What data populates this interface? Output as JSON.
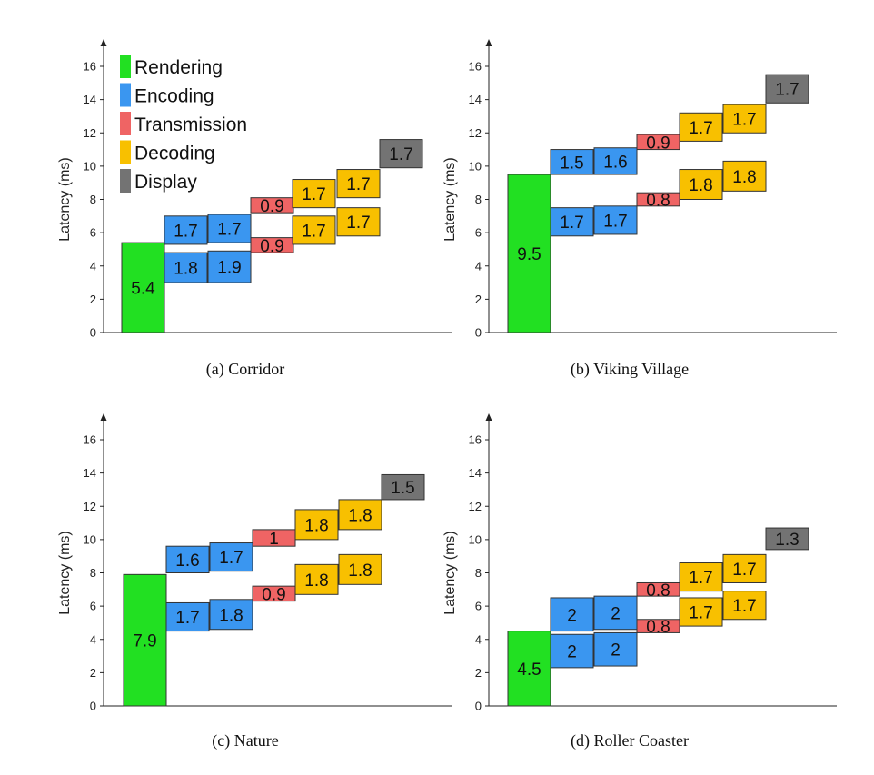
{
  "colors": {
    "Rendering": "#22e022",
    "Encoding": "#3a96f0",
    "Transmission": "#ef6464",
    "Decoding": "#f8c000",
    "Display": "#737373"
  },
  "legend": [
    "Rendering",
    "Encoding",
    "Transmission",
    "Decoding",
    "Display"
  ],
  "chart_data": [
    {
      "type": "bar",
      "caption": "(a)  Corridor",
      "ylabel": "Latency (ms)",
      "ylim": [
        0,
        16
      ],
      "yticks": [
        "0",
        "2",
        "4",
        "6",
        "8",
        "10",
        "12",
        "14",
        "16"
      ],
      "bars": [
        {
          "stage": "Rendering",
          "slot": 0,
          "start": 0,
          "value": 5.4,
          "label": "5.4"
        },
        {
          "stage": "Encoding",
          "slot": 1,
          "start": 3.0,
          "value": 1.8,
          "label": "1.8"
        },
        {
          "stage": "Encoding",
          "slot": 2,
          "start": 3.0,
          "value": 1.9,
          "label": "1.9"
        },
        {
          "stage": "Encoding",
          "slot": 1,
          "start": 5.3,
          "value": 1.7,
          "label": "1.7"
        },
        {
          "stage": "Encoding",
          "slot": 2,
          "start": 5.4,
          "value": 1.7,
          "label": "1.7"
        },
        {
          "stage": "Transmission",
          "slot": 3,
          "start": 4.8,
          "value": 0.9,
          "label": "0.9"
        },
        {
          "stage": "Transmission",
          "slot": 3,
          "start": 7.2,
          "value": 0.9,
          "label": "0.9"
        },
        {
          "stage": "Decoding",
          "slot": 4,
          "start": 5.3,
          "value": 1.7,
          "label": "1.7"
        },
        {
          "stage": "Decoding",
          "slot": 5,
          "start": 5.8,
          "value": 1.7,
          "label": "1.7"
        },
        {
          "stage": "Decoding",
          "slot": 4,
          "start": 7.5,
          "value": 1.7,
          "label": "1.7"
        },
        {
          "stage": "Decoding",
          "slot": 5,
          "start": 8.1,
          "value": 1.7,
          "label": "1.7"
        },
        {
          "stage": "Display",
          "slot": 6,
          "start": 9.9,
          "value": 1.7,
          "label": "1.7"
        }
      ]
    },
    {
      "type": "bar",
      "caption": "(b)  Viking Village",
      "ylabel": "Latency (ms)",
      "ylim": [
        0,
        16
      ],
      "yticks": [
        "0",
        "2",
        "4",
        "6",
        "8",
        "10",
        "12",
        "14",
        "16"
      ],
      "bars": [
        {
          "stage": "Rendering",
          "slot": 0,
          "start": 0,
          "value": 9.5,
          "label": "9.5"
        },
        {
          "stage": "Encoding",
          "slot": 1,
          "start": 5.8,
          "value": 1.7,
          "label": "1.7"
        },
        {
          "stage": "Encoding",
          "slot": 2,
          "start": 5.9,
          "value": 1.7,
          "label": "1.7"
        },
        {
          "stage": "Encoding",
          "slot": 1,
          "start": 9.5,
          "value": 1.5,
          "label": "1.5"
        },
        {
          "stage": "Encoding",
          "slot": 2,
          "start": 9.5,
          "value": 1.6,
          "label": "1.6"
        },
        {
          "stage": "Transmission",
          "slot": 3,
          "start": 7.6,
          "value": 0.8,
          "label": "0.8"
        },
        {
          "stage": "Transmission",
          "slot": 3,
          "start": 11.0,
          "value": 0.9,
          "label": "0.9"
        },
        {
          "stage": "Decoding",
          "slot": 4,
          "start": 8.0,
          "value": 1.8,
          "label": "1.8"
        },
        {
          "stage": "Decoding",
          "slot": 5,
          "start": 8.5,
          "value": 1.8,
          "label": "1.8"
        },
        {
          "stage": "Decoding",
          "slot": 4,
          "start": 11.5,
          "value": 1.7,
          "label": "1.7"
        },
        {
          "stage": "Decoding",
          "slot": 5,
          "start": 12.0,
          "value": 1.7,
          "label": "1.7"
        },
        {
          "stage": "Display",
          "slot": 6,
          "start": 13.8,
          "value": 1.7,
          "label": "1.7"
        }
      ]
    },
    {
      "type": "bar",
      "caption": "(c)  Nature",
      "ylabel": "Latency (ms)",
      "ylim": [
        0,
        16
      ],
      "yticks": [
        "0",
        "2",
        "4",
        "6",
        "8",
        "10",
        "12",
        "14",
        "16"
      ],
      "bars": [
        {
          "stage": "Rendering",
          "slot": 0,
          "start": 0,
          "value": 7.9,
          "label": "7.9"
        },
        {
          "stage": "Encoding",
          "slot": 1,
          "start": 4.5,
          "value": 1.7,
          "label": "1.7"
        },
        {
          "stage": "Encoding",
          "slot": 2,
          "start": 4.6,
          "value": 1.8,
          "label": "1.8"
        },
        {
          "stage": "Encoding",
          "slot": 1,
          "start": 8.0,
          "value": 1.6,
          "label": "1.6"
        },
        {
          "stage": "Encoding",
          "slot": 2,
          "start": 8.1,
          "value": 1.7,
          "label": "1.7"
        },
        {
          "stage": "Transmission",
          "slot": 3,
          "start": 6.3,
          "value": 0.9,
          "label": "0.9"
        },
        {
          "stage": "Transmission",
          "slot": 3,
          "start": 9.6,
          "value": 1.0,
          "label": "1"
        },
        {
          "stage": "Decoding",
          "slot": 4,
          "start": 6.7,
          "value": 1.8,
          "label": "1.8"
        },
        {
          "stage": "Decoding",
          "slot": 5,
          "start": 7.3,
          "value": 1.8,
          "label": "1.8"
        },
        {
          "stage": "Decoding",
          "slot": 4,
          "start": 10.0,
          "value": 1.8,
          "label": "1.8"
        },
        {
          "stage": "Decoding",
          "slot": 5,
          "start": 10.6,
          "value": 1.8,
          "label": "1.8"
        },
        {
          "stage": "Display",
          "slot": 6,
          "start": 12.4,
          "value": 1.5,
          "label": "1.5"
        }
      ]
    },
    {
      "type": "bar",
      "caption": "(d)  Roller Coaster",
      "ylabel": "Latency (ms)",
      "ylim": [
        0,
        16
      ],
      "yticks": [
        "0",
        "2",
        "4",
        "6",
        "8",
        "10",
        "12",
        "14",
        "16"
      ],
      "bars": [
        {
          "stage": "Rendering",
          "slot": 0,
          "start": 0,
          "value": 4.5,
          "label": "4.5"
        },
        {
          "stage": "Encoding",
          "slot": 1,
          "start": 2.3,
          "value": 2.0,
          "label": "2"
        },
        {
          "stage": "Encoding",
          "slot": 2,
          "start": 2.4,
          "value": 2.0,
          "label": "2"
        },
        {
          "stage": "Encoding",
          "slot": 1,
          "start": 4.5,
          "value": 2.0,
          "label": "2"
        },
        {
          "stage": "Encoding",
          "slot": 2,
          "start": 4.6,
          "value": 2.0,
          "label": "2"
        },
        {
          "stage": "Transmission",
          "slot": 3,
          "start": 4.4,
          "value": 0.8,
          "label": "0.8"
        },
        {
          "stage": "Transmission",
          "slot": 3,
          "start": 6.6,
          "value": 0.8,
          "label": "0.8"
        },
        {
          "stage": "Decoding",
          "slot": 4,
          "start": 4.8,
          "value": 1.7,
          "label": "1.7"
        },
        {
          "stage": "Decoding",
          "slot": 5,
          "start": 5.2,
          "value": 1.7,
          "label": "1.7"
        },
        {
          "stage": "Decoding",
          "slot": 4,
          "start": 6.9,
          "value": 1.7,
          "label": "1.7"
        },
        {
          "stage": "Decoding",
          "slot": 5,
          "start": 7.4,
          "value": 1.7,
          "label": "1.7"
        },
        {
          "stage": "Display",
          "slot": 6,
          "start": 9.4,
          "value": 1.3,
          "label": "1.3"
        }
      ]
    }
  ]
}
